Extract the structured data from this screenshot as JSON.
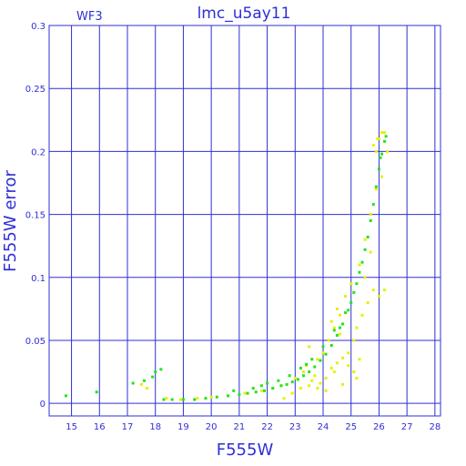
{
  "chart_data": {
    "type": "scatter",
    "title": "lmc_u5ay11",
    "chip_label": "WF3",
    "xlabel": "F555W",
    "ylabel": "F555W error",
    "xlim": [
      14.2,
      28.2
    ],
    "ylim": [
      -0.01,
      0.3
    ],
    "x_ticks": [
      15,
      16,
      17,
      18,
      19,
      20,
      21,
      22,
      23,
      24,
      25,
      26,
      27,
      28
    ],
    "y_ticks": [
      0,
      0.05,
      0.1,
      0.15,
      0.2,
      0.25,
      0.3
    ],
    "y_tick_labels": [
      "0",
      "0.05",
      "0.1",
      "0.15",
      "0.2",
      "0.25",
      "0.3"
    ],
    "grid": true,
    "series": [
      {
        "color": "#e8f000",
        "points": [
          [
            17.5,
            0.015
          ],
          [
            17.7,
            0.012
          ],
          [
            18.4,
            0.004
          ],
          [
            18.9,
            0.003
          ],
          [
            19.5,
            0.004
          ],
          [
            20.0,
            0.005
          ],
          [
            20.6,
            0.006
          ],
          [
            21.2,
            0.008
          ],
          [
            21.8,
            0.01
          ],
          [
            22.2,
            0.012
          ],
          [
            22.5,
            0.014
          ],
          [
            22.6,
            0.004
          ],
          [
            22.9,
            0.008
          ],
          [
            23.0,
            0.02
          ],
          [
            23.2,
            0.012
          ],
          [
            23.3,
            0.025
          ],
          [
            23.4,
            0.03
          ],
          [
            23.5,
            0.014
          ],
          [
            23.6,
            0.018
          ],
          [
            23.7,
            0.022
          ],
          [
            23.8,
            0.035
          ],
          [
            23.9,
            0.016
          ],
          [
            24.0,
            0.04
          ],
          [
            24.1,
            0.02
          ],
          [
            24.2,
            0.05
          ],
          [
            24.3,
            0.028
          ],
          [
            24.4,
            0.06
          ],
          [
            24.5,
            0.032
          ],
          [
            24.6,
            0.07
          ],
          [
            24.7,
            0.036
          ],
          [
            24.8,
            0.085
          ],
          [
            24.9,
            0.04
          ],
          [
            25.0,
            0.095
          ],
          [
            25.1,
            0.05
          ],
          [
            25.2,
            0.06
          ],
          [
            25.3,
            0.11
          ],
          [
            25.4,
            0.07
          ],
          [
            25.5,
            0.13
          ],
          [
            25.6,
            0.08
          ],
          [
            25.7,
            0.15
          ],
          [
            25.8,
            0.09
          ],
          [
            25.9,
            0.17
          ],
          [
            26.0,
            0.085
          ],
          [
            26.1,
            0.18
          ],
          [
            26.2,
            0.09
          ],
          [
            26.3,
            0.2
          ],
          [
            26.2,
            0.215
          ],
          [
            26.0,
            0.21
          ],
          [
            25.9,
            0.2
          ],
          [
            24.6,
            0.055
          ],
          [
            24.3,
            0.065
          ],
          [
            24.1,
            0.01
          ],
          [
            23.8,
            0.012
          ],
          [
            24.5,
            0.075
          ],
          [
            24.9,
            0.03
          ],
          [
            25.2,
            0.02
          ],
          [
            24.4,
            0.025
          ],
          [
            23.5,
            0.045
          ],
          [
            25.8,
            0.205
          ],
          [
            26.1,
            0.215
          ],
          [
            25.95,
            0.21
          ],
          [
            25.7,
            0.12
          ],
          [
            25.5,
            0.1
          ],
          [
            25.3,
            0.035
          ],
          [
            25.1,
            0.025
          ],
          [
            24.7,
            0.015
          ]
        ]
      },
      {
        "color": "#22e51c",
        "points": [
          [
            14.8,
            0.006
          ],
          [
            15.9,
            0.009
          ],
          [
            17.2,
            0.016
          ],
          [
            17.6,
            0.018
          ],
          [
            17.9,
            0.021
          ],
          [
            18.0,
            0.025
          ],
          [
            18.2,
            0.027
          ],
          [
            18.3,
            0.003
          ],
          [
            18.6,
            0.003
          ],
          [
            19.0,
            0.003
          ],
          [
            19.4,
            0.003
          ],
          [
            19.8,
            0.004
          ],
          [
            20.2,
            0.005
          ],
          [
            20.6,
            0.006
          ],
          [
            21.0,
            0.007
          ],
          [
            21.3,
            0.008
          ],
          [
            21.6,
            0.009
          ],
          [
            21.9,
            0.01
          ],
          [
            22.2,
            0.012
          ],
          [
            22.5,
            0.014
          ],
          [
            22.7,
            0.015
          ],
          [
            22.9,
            0.017
          ],
          [
            23.1,
            0.019
          ],
          [
            23.3,
            0.022
          ],
          [
            23.5,
            0.025
          ],
          [
            23.7,
            0.029
          ],
          [
            23.9,
            0.034
          ],
          [
            24.1,
            0.039
          ],
          [
            24.3,
            0.046
          ],
          [
            24.5,
            0.054
          ],
          [
            24.7,
            0.063
          ],
          [
            24.9,
            0.074
          ],
          [
            25.1,
            0.088
          ],
          [
            25.3,
            0.104
          ],
          [
            25.5,
            0.122
          ],
          [
            25.7,
            0.145
          ],
          [
            25.8,
            0.158
          ],
          [
            25.9,
            0.172
          ],
          [
            26.0,
            0.186
          ],
          [
            26.1,
            0.198
          ],
          [
            26.2,
            0.208
          ],
          [
            26.25,
            0.212
          ],
          [
            21.5,
            0.012
          ],
          [
            22.0,
            0.016
          ],
          [
            22.4,
            0.018
          ],
          [
            22.8,
            0.022
          ],
          [
            23.2,
            0.028
          ],
          [
            23.6,
            0.035
          ],
          [
            24.0,
            0.045
          ],
          [
            24.4,
            0.058
          ],
          [
            24.8,
            0.072
          ],
          [
            25.2,
            0.095
          ],
          [
            25.6,
            0.132
          ],
          [
            26.05,
            0.195
          ],
          [
            20.8,
            0.01
          ],
          [
            21.8,
            0.014
          ],
          [
            23.4,
            0.031
          ],
          [
            24.6,
            0.06
          ],
          [
            25.0,
            0.08
          ],
          [
            25.4,
            0.112
          ]
        ]
      }
    ]
  }
}
